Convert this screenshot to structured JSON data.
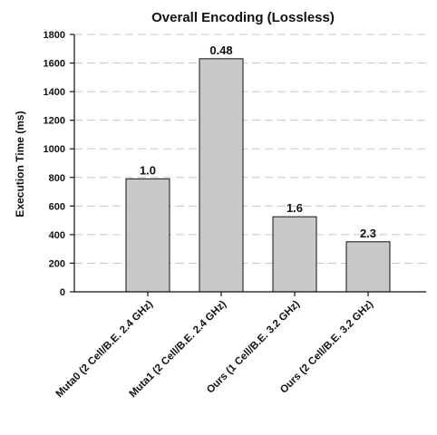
{
  "chart_data": {
    "type": "bar",
    "title": "Overall Encoding (Lossless)",
    "xlabel": "",
    "ylabel": "Execution Time (ms)",
    "ylim": [
      0,
      1800
    ],
    "yticks": [
      0,
      200,
      400,
      600,
      800,
      1000,
      1200,
      1400,
      1600,
      1800
    ],
    "grid": "horizontal-dashed",
    "legend": "none",
    "categories": [
      "Muta0 (2 Cell/B.E. 2.4 GHz)",
      "Muta1 (2 Cell/B.E. 2.4 GHz)",
      "Ours (1 Cell/B.E. 3.2 GHz)",
      "Ours (2 Cell/B.E. 3.2 GHz)"
    ],
    "values": [
      790,
      1630,
      525,
      350
    ],
    "data_labels": [
      "1.0",
      "0.48",
      "1.6",
      "2.3"
    ],
    "bar_color": "#c8c8c8"
  }
}
